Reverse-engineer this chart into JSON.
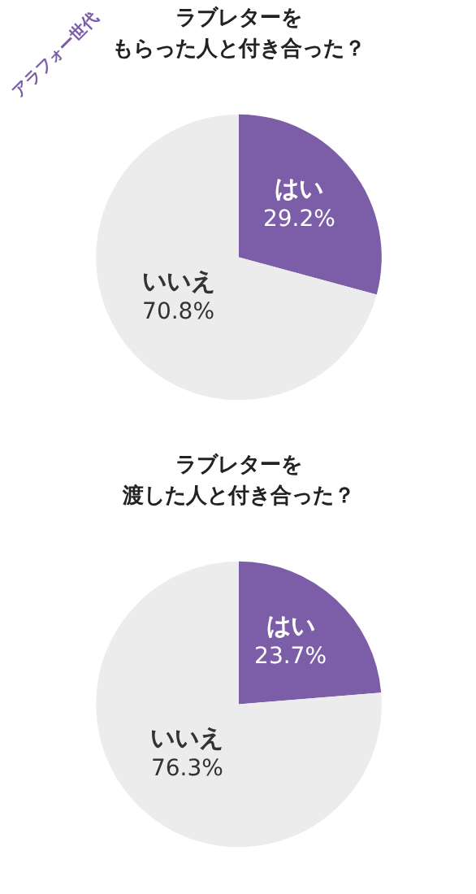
{
  "chart_data": [
    {
      "type": "pie",
      "title": "ラブレターを",
      "subtitle": "もらった人と付き合った？",
      "categories": [
        "はい",
        "いいえ"
      ],
      "values": [
        29.2,
        70.8
      ],
      "colors": [
        "#7b5ea7",
        "#ececec"
      ],
      "value_labels": [
        "29.2%",
        "70.8%"
      ],
      "annotations": [
        "アラフォー世代"
      ]
    },
    {
      "type": "pie",
      "title": "ラブレターを",
      "subtitle": "渡した人と付き合った？",
      "categories": [
        "はい",
        "いいえ"
      ],
      "values": [
        23.7,
        76.3
      ],
      "colors": [
        "#7b5ea7",
        "#ececec"
      ],
      "value_labels": [
        "23.7%",
        "76.3%"
      ]
    }
  ]
}
